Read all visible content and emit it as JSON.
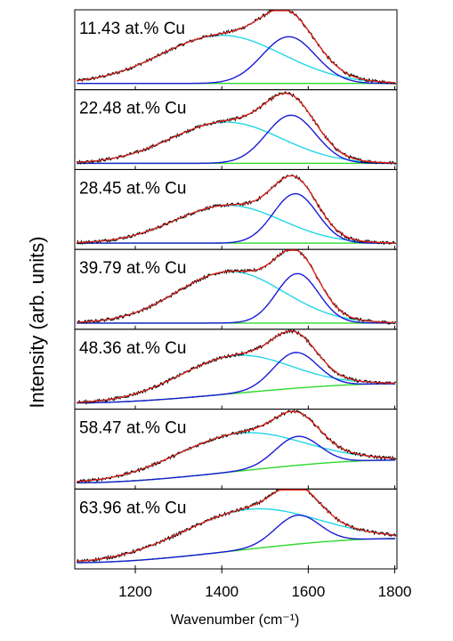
{
  "chart_data": {
    "type": "line",
    "xlabel": "Wavenumber (cm⁻¹)",
    "ylabel": "Intensity (arb. units)",
    "xlim": [
      1060,
      1805
    ],
    "xticks": [
      "1200",
      "1400",
      "1600",
      "1800"
    ],
    "xtick_values": [
      1200,
      1400,
      1600,
      1800
    ],
    "colors": {
      "data": "#000000",
      "fit": "#e8231a",
      "D_band": "#22d6e6",
      "G_band": "#1a1ad6",
      "background": "#2bd92b"
    },
    "panels": [
      {
        "label": "11.43 at.% Cu",
        "D_band": {
          "center": 1400,
          "width": 330,
          "height": 0.7
        },
        "G_band": {
          "center": 1555,
          "width": 145,
          "height": 0.68
        },
        "background": {
          "start": 0.0,
          "end": 0.0
        }
      },
      {
        "label": "22.48 at.% Cu",
        "D_band": {
          "center": 1410,
          "width": 300,
          "height": 0.6
        },
        "G_band": {
          "center": 1560,
          "width": 135,
          "height": 0.7
        },
        "background": {
          "start": 0.0,
          "end": 0.0
        }
      },
      {
        "label": "28.45 at.% Cu",
        "D_band": {
          "center": 1415,
          "width": 290,
          "height": 0.55
        },
        "G_band": {
          "center": 1570,
          "width": 120,
          "height": 0.72
        },
        "background": {
          "start": 0.0,
          "end": 0.0
        }
      },
      {
        "label": "39.79 at.% Cu",
        "D_band": {
          "center": 1420,
          "width": 290,
          "height": 0.75
        },
        "G_band": {
          "center": 1575,
          "width": 115,
          "height": 0.72
        },
        "background": {
          "start": 0.0,
          "end": 0.0
        }
      },
      {
        "label": "48.36 at.% Cu",
        "D_band": {
          "center": 1430,
          "width": 300,
          "height": 0.55
        },
        "G_band": {
          "center": 1570,
          "width": 120,
          "height": 0.52
        },
        "background": {
          "start": 0.0,
          "end": 0.28
        }
      },
      {
        "label": "58.47 at.% Cu",
        "D_band": {
          "center": 1440,
          "width": 340,
          "height": 0.55
        },
        "G_band": {
          "center": 1575,
          "width": 120,
          "height": 0.42
        },
        "background": {
          "start": 0.0,
          "end": 0.33
        }
      },
      {
        "label": "63.96 at.% Cu",
        "D_band": {
          "center": 1460,
          "width": 360,
          "height": 0.58
        },
        "G_band": {
          "center": 1575,
          "width": 120,
          "height": 0.42
        },
        "background": {
          "start": 0.0,
          "end": 0.35
        }
      }
    ]
  }
}
